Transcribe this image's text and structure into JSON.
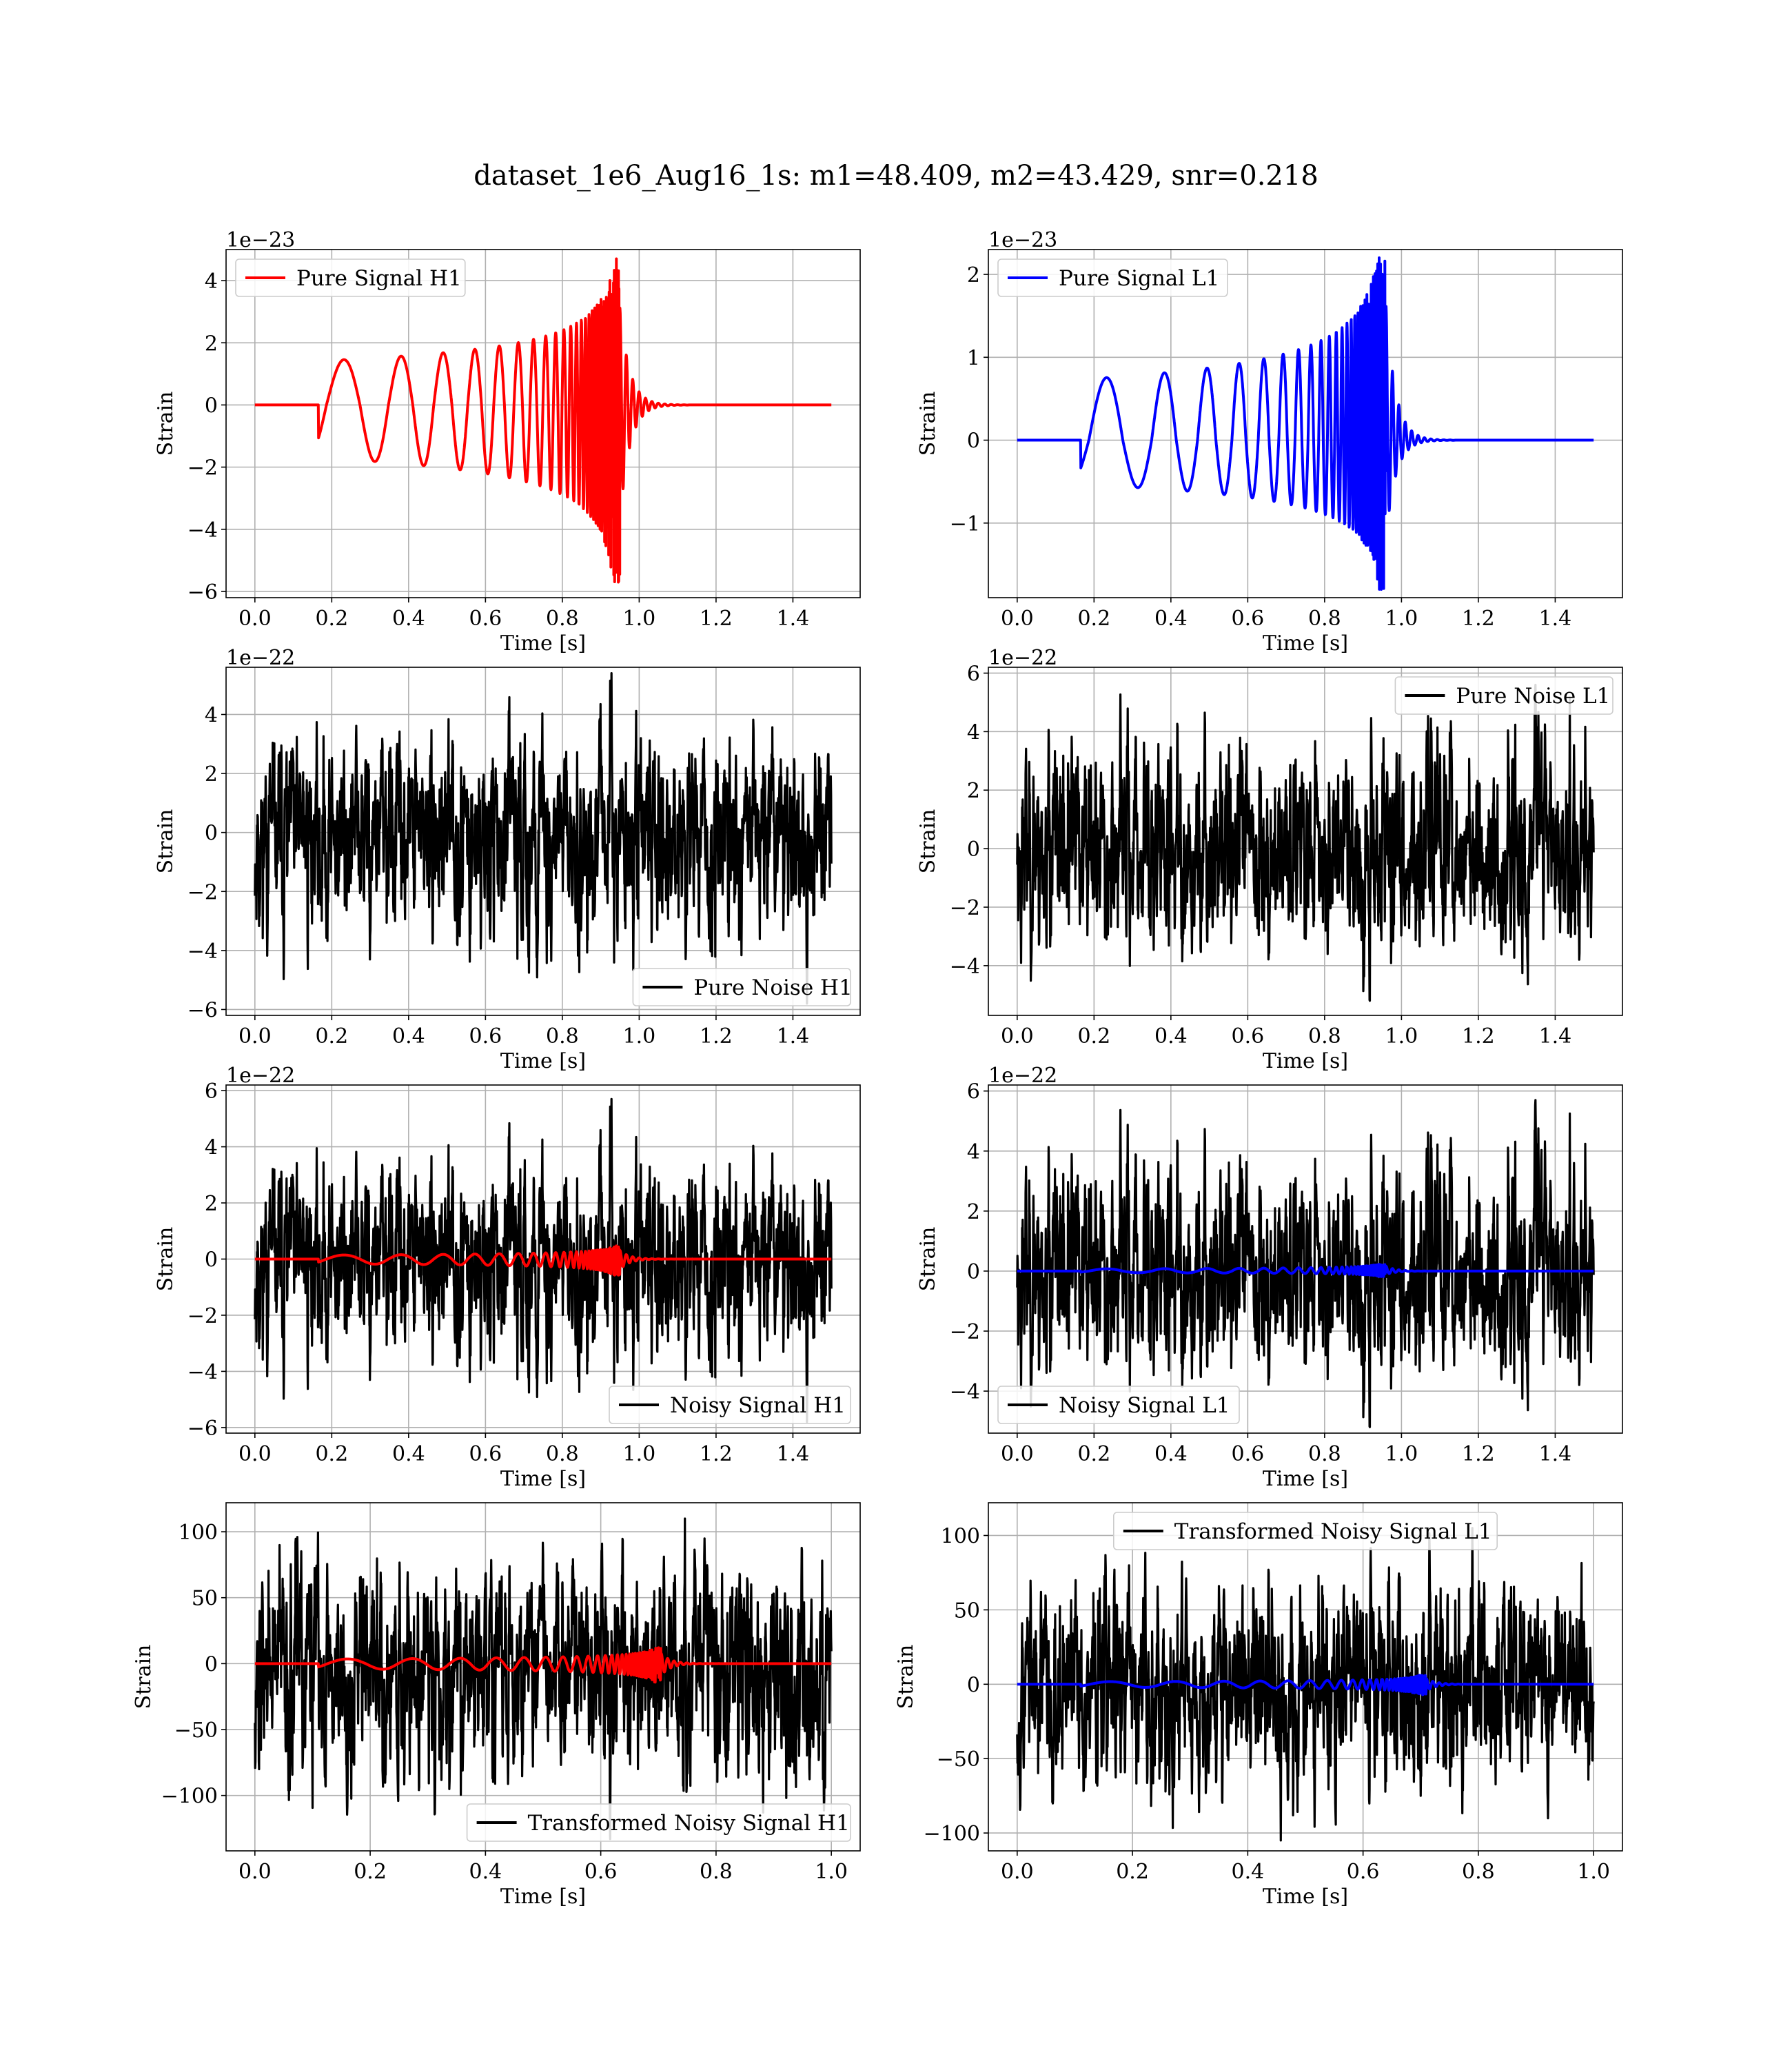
{
  "figure": {
    "title": "dataset_1e6_Aug16_1s: m1=48.409, m2=43.429, snr=0.218"
  },
  "colors": {
    "red": "#ff0000",
    "blue": "#0000ff",
    "black": "#000000",
    "grid": "#b0b0b0"
  },
  "chart_data": [
    {
      "type": "line",
      "panel": "pure-signal-h1",
      "xlabel": "Time [s]",
      "ylabel": "Strain",
      "offset_text": "1e−23",
      "xlim": [
        -0.075,
        1.575
      ],
      "ylim": [
        -6.2,
        5.0
      ],
      "xticks": [
        0,
        0.2,
        0.4,
        0.6,
        0.8,
        1.0,
        1.2,
        1.4
      ],
      "xtick_labels": [
        "0.0",
        "0.2",
        "0.4",
        "0.6",
        "0.8",
        "1.0",
        "1.2",
        "1.4"
      ],
      "yticks": [
        -6,
        -4,
        -2,
        0,
        2,
        4
      ],
      "ytick_labels": [
        "−6",
        "−4",
        "−2",
        "0",
        "2",
        "4"
      ],
      "legend": {
        "position": "upper-left",
        "entries": [
          {
            "label": "Pure Signal H1",
            "color": "#ff0000"
          }
        ]
      },
      "series": [
        {
          "name": "Pure Signal H1",
          "color": "#ff0000",
          "kind": "chirp",
          "x_range": [
            0,
            1.5
          ],
          "t_merger": 0.95,
          "peak_value": 4.7,
          "min_value": -5.7
        }
      ]
    },
    {
      "type": "line",
      "panel": "pure-signal-l1",
      "xlabel": "Time [s]",
      "ylabel": "Strain",
      "offset_text": "1e−23",
      "xlim": [
        -0.075,
        1.575
      ],
      "ylim": [
        -1.9,
        2.3
      ],
      "xticks": [
        0,
        0.2,
        0.4,
        0.6,
        0.8,
        1.0,
        1.2,
        1.4
      ],
      "xtick_labels": [
        "0.0",
        "0.2",
        "0.4",
        "0.6",
        "0.8",
        "1.0",
        "1.2",
        "1.4"
      ],
      "yticks": [
        -1,
        0,
        1,
        2
      ],
      "ytick_labels": [
        "−1",
        "0",
        "1",
        "2"
      ],
      "legend": {
        "position": "upper-left",
        "entries": [
          {
            "label": "Pure Signal L1",
            "color": "#0000ff"
          }
        ]
      },
      "series": [
        {
          "name": "Pure Signal L1",
          "color": "#0000ff",
          "kind": "chirp",
          "x_range": [
            0,
            1.5
          ],
          "t_merger": 0.96,
          "peak_value": 2.2,
          "min_value": -1.8
        }
      ]
    },
    {
      "type": "line",
      "panel": "pure-noise-h1",
      "xlabel": "Time [s]",
      "ylabel": "Strain",
      "offset_text": "1e−22",
      "xlim": [
        -0.075,
        1.575
      ],
      "ylim": [
        -6.2,
        5.6
      ],
      "xticks": [
        0,
        0.2,
        0.4,
        0.6,
        0.8,
        1.0,
        1.2,
        1.4
      ],
      "xtick_labels": [
        "0.0",
        "0.2",
        "0.4",
        "0.6",
        "0.8",
        "1.0",
        "1.2",
        "1.4"
      ],
      "yticks": [
        -6,
        -4,
        -2,
        0,
        2,
        4
      ],
      "ytick_labels": [
        "−6",
        "−4",
        "−2",
        "0",
        "2",
        "4"
      ],
      "legend": {
        "position": "lower-right",
        "entries": [
          {
            "label": "Pure Noise H1",
            "color": "#000000"
          }
        ]
      },
      "series": [
        {
          "name": "Pure Noise H1",
          "color": "#000000",
          "kind": "noise",
          "x_range": [
            0,
            1.5
          ],
          "max_value": 5.4,
          "min_value": -5.8,
          "seed": 11
        }
      ]
    },
    {
      "type": "line",
      "panel": "pure-noise-l1",
      "xlabel": "Time [s]",
      "ylabel": "Strain",
      "offset_text": "1e−22",
      "xlim": [
        -0.075,
        1.575
      ],
      "ylim": [
        -5.7,
        6.2
      ],
      "xticks": [
        0,
        0.2,
        0.4,
        0.6,
        0.8,
        1.0,
        1.2,
        1.4
      ],
      "xtick_labels": [
        "0.0",
        "0.2",
        "0.4",
        "0.6",
        "0.8",
        "1.0",
        "1.2",
        "1.4"
      ],
      "yticks": [
        -4,
        -2,
        0,
        2,
        4,
        6
      ],
      "ytick_labels": [
        "−4",
        "−2",
        "0",
        "2",
        "4",
        "6"
      ],
      "legend": {
        "position": "upper-right",
        "entries": [
          {
            "label": "Pure Noise L1",
            "color": "#000000"
          }
        ]
      },
      "series": [
        {
          "name": "Pure Noise L1",
          "color": "#000000",
          "kind": "noise",
          "x_range": [
            0,
            1.5
          ],
          "max_value": 5.6,
          "min_value": -5.2,
          "seed": 23
        }
      ]
    },
    {
      "type": "line",
      "panel": "noisy-signal-h1",
      "xlabel": "Time [s]",
      "ylabel": "Strain",
      "offset_text": "1e−22",
      "xlim": [
        -0.075,
        1.575
      ],
      "ylim": [
        -6.2,
        6.2
      ],
      "xticks": [
        0,
        0.2,
        0.4,
        0.6,
        0.8,
        1.0,
        1.2,
        1.4
      ],
      "xtick_labels": [
        "0.0",
        "0.2",
        "0.4",
        "0.6",
        "0.8",
        "1.0",
        "1.2",
        "1.4"
      ],
      "yticks": [
        -6,
        -4,
        -2,
        0,
        2,
        4,
        6
      ],
      "ytick_labels": [
        "−6",
        "−4",
        "−2",
        "0",
        "2",
        "4",
        "6"
      ],
      "legend": {
        "position": "lower-right",
        "entries": [
          {
            "label": "Noisy Signal H1",
            "color": "#000000"
          }
        ]
      },
      "series": [
        {
          "name": "Noisy Signal H1",
          "color": "#000000",
          "kind": "noise",
          "x_range": [
            0,
            1.5
          ],
          "max_value": 5.7,
          "min_value": -5.8,
          "seed": 11
        },
        {
          "color": "#ff0000",
          "kind": "chirp",
          "x_range": [
            0,
            1.5
          ],
          "t_merger": 0.95,
          "peak_value": 0.47,
          "min_value": -0.57
        }
      ]
    },
    {
      "type": "line",
      "panel": "noisy-signal-l1",
      "xlabel": "Time [s]",
      "ylabel": "Strain",
      "offset_text": "1e−22",
      "xlim": [
        -0.075,
        1.575
      ],
      "ylim": [
        -5.4,
        6.2
      ],
      "xticks": [
        0,
        0.2,
        0.4,
        0.6,
        0.8,
        1.0,
        1.2,
        1.4
      ],
      "xtick_labels": [
        "0.0",
        "0.2",
        "0.4",
        "0.6",
        "0.8",
        "1.0",
        "1.2",
        "1.4"
      ],
      "yticks": [
        -4,
        -2,
        0,
        2,
        4,
        6
      ],
      "ytick_labels": [
        "−4",
        "−2",
        "0",
        "2",
        "4",
        "6"
      ],
      "legend": {
        "position": "lower-left",
        "entries": [
          {
            "label": "Noisy Signal L1",
            "color": "#000000"
          }
        ]
      },
      "series": [
        {
          "name": "Noisy Signal L1",
          "color": "#000000",
          "kind": "noise",
          "x_range": [
            0,
            1.5
          ],
          "max_value": 5.7,
          "min_value": -5.2,
          "seed": 23
        },
        {
          "color": "#0000ff",
          "kind": "chirp",
          "x_range": [
            0,
            1.5
          ],
          "t_merger": 0.96,
          "peak_value": 0.22,
          "min_value": -0.18
        }
      ]
    },
    {
      "type": "line",
      "panel": "transformed-noisy-signal-h1",
      "xlabel": "Time [s]",
      "ylabel": "Strain",
      "offset_text": "",
      "xlim": [
        -0.05,
        1.05
      ],
      "ylim": [
        -142,
        122
      ],
      "xticks": [
        0,
        0.2,
        0.4,
        0.6,
        0.8,
        1.0
      ],
      "xtick_labels": [
        "0.0",
        "0.2",
        "0.4",
        "0.6",
        "0.8",
        "1.0"
      ],
      "yticks": [
        -100,
        -50,
        0,
        50,
        100
      ],
      "ytick_labels": [
        "−100",
        "−50",
        "0",
        "50",
        "100"
      ],
      "legend": {
        "position": "lower-right",
        "entries": [
          {
            "label": "Transformed Noisy Signal H1",
            "color": "#000000"
          }
        ]
      },
      "series": [
        {
          "name": "Transformed Noisy Signal H1",
          "color": "#000000",
          "kind": "noise",
          "x_range": [
            0,
            1.0
          ],
          "max_value": 110,
          "min_value": -133,
          "seed": 37
        },
        {
          "color": "#ff0000",
          "kind": "chirp",
          "x_range": [
            0,
            1.0
          ],
          "t_merger": 0.705,
          "peak_value": 12,
          "min_value": -14
        }
      ]
    },
    {
      "type": "line",
      "panel": "transformed-noisy-signal-l1",
      "xlabel": "Time [s]",
      "ylabel": "Strain",
      "offset_text": "",
      "xlim": [
        -0.05,
        1.05
      ],
      "ylim": [
        -112,
        122
      ],
      "xticks": [
        0,
        0.2,
        0.4,
        0.6,
        0.8,
        1.0
      ],
      "xtick_labels": [
        "0.0",
        "0.2",
        "0.4",
        "0.6",
        "0.8",
        "1.0"
      ],
      "yticks": [
        -100,
        -50,
        0,
        50,
        100
      ],
      "ytick_labels": [
        "−100",
        "−50",
        "0",
        "50",
        "100"
      ],
      "legend": {
        "position": "upper-center",
        "entries": [
          {
            "label": "Transformed Noisy Signal L1",
            "color": "#000000"
          }
        ]
      },
      "series": [
        {
          "name": "Transformed Noisy Signal L1",
          "color": "#000000",
          "kind": "noise",
          "x_range": [
            0,
            1.0
          ],
          "max_value": 105,
          "min_value": -105,
          "seed": 53
        },
        {
          "color": "#0000ff",
          "kind": "chirp",
          "x_range": [
            0,
            1.0
          ],
          "t_merger": 0.71,
          "peak_value": 6,
          "min_value": -7
        }
      ]
    }
  ]
}
